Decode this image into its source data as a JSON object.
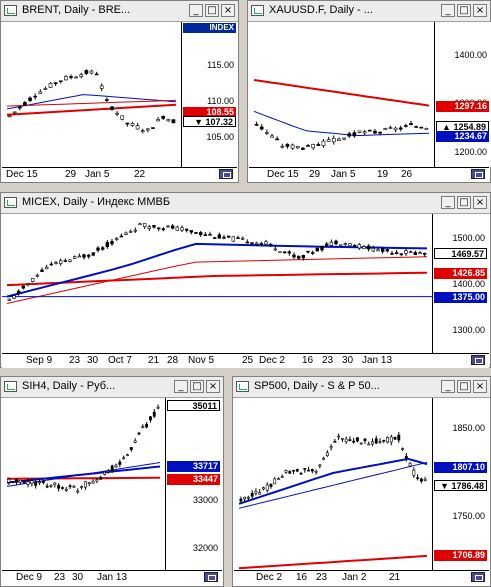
{
  "icons": {
    "window": "chart-window-icon",
    "minimize": "minimize-icon",
    "maximize": "maximize-icon",
    "close": "close-icon",
    "scroll": "chart-scroll-icon"
  },
  "buttons": {
    "minimize": "_",
    "maximize": "□",
    "close": "×"
  },
  "colors": {
    "up": "#000000",
    "down": "#000000",
    "ma_red": "#e00000",
    "ma_blue": "#0010c0",
    "scale_red": "#e00000",
    "scale_blue": "#0010c0"
  },
  "windows": {
    "brent": {
      "title": "BRENT, Daily - BRE...",
      "index_label": "INDEX",
      "price_labels": [
        {
          "text": "115.00",
          "v": 115
        },
        {
          "text": "110.00",
          "v": 110
        },
        {
          "text": "105.00",
          "v": 105
        }
      ],
      "price_boxes": [
        {
          "text": "108.55",
          "v": 108.55,
          "bg": "#e00000",
          "fg": "#ffffff"
        },
        {
          "text": "107.32",
          "v": 107.32,
          "bg": "#ffffff",
          "fg": "#000000",
          "arrow": "▼"
        }
      ],
      "x_labels": [
        "Dec 15",
        "29",
        "Jan 5",
        "22"
      ]
    },
    "xau": {
      "title": "XAUUSD.F, Daily - ...",
      "price_labels": [
        {
          "text": "1400.00",
          "v": 1400
        },
        {
          "text": "1300.00",
          "v": 1300
        },
        {
          "text": "1200.00",
          "v": 1200
        }
      ],
      "price_boxes": [
        {
          "text": "1297.16",
          "v": 1297.16,
          "bg": "#e00000",
          "fg": "#ffffff"
        },
        {
          "text": "1254.89",
          "v": 1254.89,
          "bg": "#ffffff",
          "fg": "#000000",
          "arrow": "▲"
        },
        {
          "text": "1234.67",
          "v": 1234.67,
          "bg": "#0010c0",
          "fg": "#ffffff"
        }
      ],
      "x_labels": [
        "Dec 15",
        "29",
        "Jan 5",
        "19",
        "26"
      ]
    },
    "micex": {
      "title": "MICEX, Daily - Индекс ММВБ",
      "price_labels": [
        {
          "text": "1500.00",
          "v": 1500
        },
        {
          "text": "1400.00",
          "v": 1400
        },
        {
          "text": "1300.00",
          "v": 1300
        }
      ],
      "price_boxes": [
        {
          "text": "1469.57",
          "v": 1469.57,
          "bg": "#ffffff",
          "fg": "#000000"
        },
        {
          "text": "1426.85",
          "v": 1426.85,
          "bg": "#e00000",
          "fg": "#ffffff"
        },
        {
          "text": "1375.00",
          "v": 1375,
          "bg": "#0010c0",
          "fg": "#ffffff"
        }
      ],
      "x_labels": [
        "Sep 9",
        "23",
        "30",
        "Oct 7",
        "21",
        "28",
        "Nov 5",
        "25",
        "Dec 2",
        "16",
        "23",
        "30",
        "Jan 13"
      ]
    },
    "sih4": {
      "title": "SIH4, Daily - Руб...",
      "price_labels": [
        {
          "text": "33000",
          "v": 33000
        },
        {
          "text": "32000",
          "v": 32000
        }
      ],
      "price_boxes": [
        {
          "text": "35011",
          "v": 35011,
          "bg": "#ffffff",
          "fg": "#000000"
        },
        {
          "text": "33717",
          "v": 33717,
          "bg": "#0010c0",
          "fg": "#ffffff"
        },
        {
          "text": "33447",
          "v": 33447,
          "bg": "#e00000",
          "fg": "#ffffff"
        }
      ],
      "x_labels": [
        "Dec 9",
        "23",
        "30",
        "Jan 13"
      ]
    },
    "sp500": {
      "title": "SP500, Daily - S & P 50...",
      "price_labels": [
        {
          "text": "1850.00",
          "v": 1850
        },
        {
          "text": "1750.00",
          "v": 1750
        }
      ],
      "price_boxes": [
        {
          "text": "1807.10",
          "v": 1807.1,
          "bg": "#0010c0",
          "fg": "#ffffff"
        },
        {
          "text": "1786.48",
          "v": 1786.48,
          "bg": "#ffffff",
          "fg": "#000000",
          "arrow": "▼"
        },
        {
          "text": "1706.89",
          "v": 1706.89,
          "bg": "#e00000",
          "fg": "#ffffff"
        }
      ],
      "x_labels": [
        "Dec 2",
        "16",
        "23",
        "Jan 2",
        "21"
      ]
    }
  }
}
